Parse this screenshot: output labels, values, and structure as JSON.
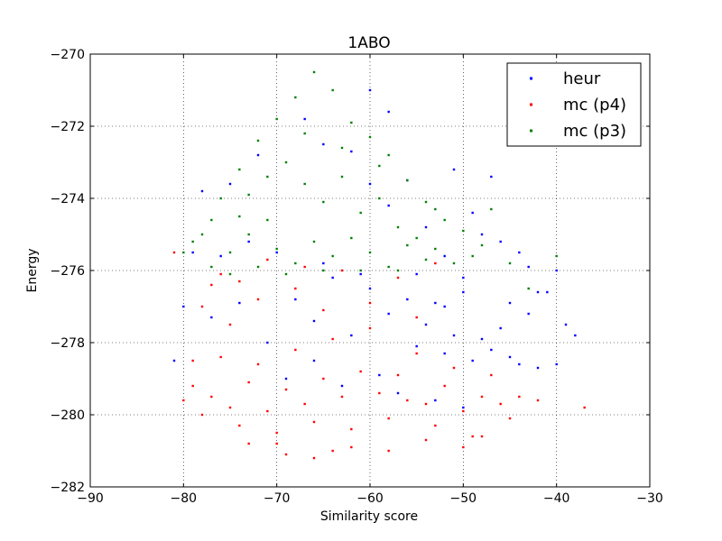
{
  "chart_data": {
    "type": "scatter",
    "title": "1ABO",
    "xlabel": "Similarity score",
    "ylabel": "Energy",
    "xlim": [
      -90,
      -30
    ],
    "ylim": [
      -282,
      -270
    ],
    "xticks": [
      -90,
      -80,
      -70,
      -60,
      -50,
      -40,
      -30
    ],
    "yticks": [
      -282,
      -280,
      -278,
      -276,
      -274,
      -272,
      -270
    ],
    "xtick_labels": [
      "−90",
      "−80",
      "−70",
      "−60",
      "−50",
      "−40",
      "−30"
    ],
    "ytick_labels": [
      "−282",
      "−280",
      "−278",
      "−276",
      "−274",
      "−272",
      "−270"
    ],
    "grid": true,
    "legend_position": "top-right",
    "series": [
      {
        "name": "heur",
        "color": "#0000ff",
        "points": [
          [
            -70,
            -275.5
          ],
          [
            -68,
            -276.8
          ],
          [
            -66,
            -277.4
          ],
          [
            -64,
            -276.2
          ],
          [
            -62,
            -277.8
          ],
          [
            -60,
            -276.5
          ],
          [
            -58,
            -277.2
          ],
          [
            -56,
            -276.8
          ],
          [
            -55,
            -278.1
          ],
          [
            -54,
            -277.5
          ],
          [
            -53,
            -276.9
          ],
          [
            -52,
            -278.3
          ],
          [
            -51,
            -277.8
          ],
          [
            -50,
            -276.6
          ],
          [
            -49,
            -278.5
          ],
          [
            -48,
            -277.9
          ],
          [
            -47,
            -278.2
          ],
          [
            -46,
            -277.6
          ],
          [
            -45,
            -278.4
          ],
          [
            -44,
            -278.6
          ],
          [
            -43,
            -277.2
          ],
          [
            -42,
            -278.7
          ],
          [
            -41,
            -276.6
          ],
          [
            -40,
            -278.6
          ],
          [
            -39,
            -277.5
          ],
          [
            -62,
            -272.7
          ],
          [
            -60,
            -273.6
          ],
          [
            -58,
            -274.2
          ],
          [
            -56,
            -273.5
          ],
          [
            -54,
            -274.8
          ],
          [
            -52,
            -275.6
          ],
          [
            -50,
            -276.2
          ],
          [
            -48,
            -275.0
          ],
          [
            -47,
            -273.4
          ],
          [
            -44,
            -275.5
          ],
          [
            -42,
            -276.6
          ],
          [
            -38,
            -277.8
          ],
          [
            -60,
            -271.0
          ],
          [
            -65,
            -272.5
          ],
          [
            -72,
            -272.8
          ],
          [
            -75,
            -273.6
          ],
          [
            -78,
            -273.8
          ],
          [
            -80,
            -277.0
          ],
          [
            -81,
            -278.5
          ],
          [
            -77,
            -277.3
          ],
          [
            -74,
            -276.9
          ],
          [
            -71,
            -278.0
          ],
          [
            -69,
            -279.0
          ],
          [
            -66,
            -278.5
          ],
          [
            -63,
            -279.2
          ],
          [
            -59,
            -278.9
          ],
          [
            -57,
            -279.4
          ],
          [
            -53,
            -279.6
          ],
          [
            -50,
            -279.8
          ],
          [
            -67,
            -271.8
          ],
          [
            -58,
            -271.6
          ],
          [
            -51,
            -273.2
          ],
          [
            -49,
            -274.4
          ],
          [
            -46,
            -275.2
          ],
          [
            -40,
            -276.0
          ],
          [
            -43,
            -275.9
          ],
          [
            -45,
            -276.9
          ],
          [
            -52,
            -277.0
          ],
          [
            -55,
            -276.1
          ],
          [
            -61,
            -276.1
          ],
          [
            -65,
            -275.8
          ],
          [
            -73,
            -275.2
          ],
          [
            -76,
            -275.6
          ],
          [
            -79,
            -275.5
          ]
        ]
      },
      {
        "name": "mc (p4)",
        "color": "#ff0000",
        "points": [
          [
            -80,
            -279.6
          ],
          [
            -79,
            -279.2
          ],
          [
            -78,
            -280.0
          ],
          [
            -77,
            -279.5
          ],
          [
            -76,
            -278.4
          ],
          [
            -75,
            -279.8
          ],
          [
            -74,
            -280.3
          ],
          [
            -73,
            -279.1
          ],
          [
            -72,
            -278.6
          ],
          [
            -71,
            -279.9
          ],
          [
            -70,
            -280.5
          ],
          [
            -69,
            -279.3
          ],
          [
            -68,
            -278.2
          ],
          [
            -67,
            -279.7
          ],
          [
            -66,
            -280.2
          ],
          [
            -65,
            -279.0
          ],
          [
            -64,
            -277.9
          ],
          [
            -63,
            -279.5
          ],
          [
            -62,
            -280.4
          ],
          [
            -61,
            -278.8
          ],
          [
            -60,
            -277.6
          ],
          [
            -59,
            -279.4
          ],
          [
            -58,
            -280.1
          ],
          [
            -57,
            -278.9
          ],
          [
            -56,
            -279.6
          ],
          [
            -55,
            -278.3
          ],
          [
            -54,
            -279.7
          ],
          [
            -53,
            -280.3
          ],
          [
            -52,
            -279.2
          ],
          [
            -51,
            -278.7
          ],
          [
            -50,
            -279.9
          ],
          [
            -49,
            -280.6
          ],
          [
            -48,
            -279.5
          ],
          [
            -47,
            -278.9
          ],
          [
            -46,
            -279.7
          ],
          [
            -45,
            -280.1
          ],
          [
            -44,
            -279.5
          ],
          [
            -42,
            -279.6
          ],
          [
            -37,
            -279.8
          ],
          [
            -72,
            -276.8
          ],
          [
            -68,
            -276.5
          ],
          [
            -65,
            -277.1
          ],
          [
            -60,
            -276.9
          ],
          [
            -55,
            -277.3
          ],
          [
            -75,
            -277.5
          ],
          [
            -77,
            -276.4
          ],
          [
            -79,
            -278.5
          ],
          [
            -81,
            -275.5
          ],
          [
            -70,
            -280.8
          ],
          [
            -66,
            -281.2
          ],
          [
            -62,
            -280.9
          ],
          [
            -58,
            -281.0
          ],
          [
            -54,
            -280.7
          ],
          [
            -50,
            -280.9
          ],
          [
            -73,
            -280.8
          ],
          [
            -69,
            -281.1
          ],
          [
            -64,
            -281.0
          ],
          [
            -48,
            -280.6
          ],
          [
            -53,
            -275.8
          ],
          [
            -57,
            -276.2
          ],
          [
            -63,
            -276.0
          ],
          [
            -67,
            -275.9
          ],
          [
            -71,
            -275.7
          ],
          [
            -74,
            -276.3
          ],
          [
            -76,
            -276.1
          ],
          [
            -78,
            -277.0
          ]
        ]
      },
      {
        "name": "mc (p3)",
        "color": "#008000",
        "points": [
          [
            -66,
            -270.5
          ],
          [
            -68,
            -271.2
          ],
          [
            -64,
            -271.0
          ],
          [
            -70,
            -271.8
          ],
          [
            -62,
            -271.9
          ],
          [
            -72,
            -272.4
          ],
          [
            -60,
            -272.3
          ],
          [
            -58,
            -272.8
          ],
          [
            -74,
            -273.2
          ],
          [
            -56,
            -273.5
          ],
          [
            -76,
            -274.0
          ],
          [
            -54,
            -274.1
          ],
          [
            -52,
            -274.6
          ],
          [
            -50,
            -274.9
          ],
          [
            -48,
            -275.3
          ],
          [
            -78,
            -275.0
          ],
          [
            -80,
            -275.5
          ],
          [
            -69,
            -273.0
          ],
          [
            -67,
            -273.6
          ],
          [
            -65,
            -274.1
          ],
          [
            -63,
            -273.4
          ],
          [
            -61,
            -274.4
          ],
          [
            -59,
            -274.0
          ],
          [
            -57,
            -274.8
          ],
          [
            -55,
            -275.1
          ],
          [
            -53,
            -275.4
          ],
          [
            -51,
            -275.8
          ],
          [
            -49,
            -275.6
          ],
          [
            -47,
            -274.3
          ],
          [
            -45,
            -275.8
          ],
          [
            -43,
            -276.5
          ],
          [
            -40,
            -275.6
          ],
          [
            -71,
            -274.6
          ],
          [
            -73,
            -275.0
          ],
          [
            -75,
            -275.5
          ],
          [
            -77,
            -275.9
          ],
          [
            -79,
            -275.2
          ],
          [
            -70,
            -275.4
          ],
          [
            -68,
            -275.8
          ],
          [
            -66,
            -275.2
          ],
          [
            -64,
            -275.6
          ],
          [
            -62,
            -275.1
          ],
          [
            -60,
            -275.5
          ],
          [
            -58,
            -275.9
          ],
          [
            -56,
            -275.3
          ],
          [
            -54,
            -275.7
          ],
          [
            -72,
            -275.9
          ],
          [
            -74,
            -274.5
          ],
          [
            -65,
            -276.0
          ],
          [
            -61,
            -276.0
          ],
          [
            -57,
            -276.0
          ],
          [
            -67,
            -272.2
          ],
          [
            -63,
            -272.6
          ],
          [
            -59,
            -273.1
          ],
          [
            -71,
            -273.4
          ],
          [
            -73,
            -273.9
          ],
          [
            -69,
            -276.1
          ],
          [
            -75,
            -276.1
          ],
          [
            -77,
            -274.6
          ],
          [
            -53,
            -274.3
          ]
        ]
      }
    ]
  }
}
